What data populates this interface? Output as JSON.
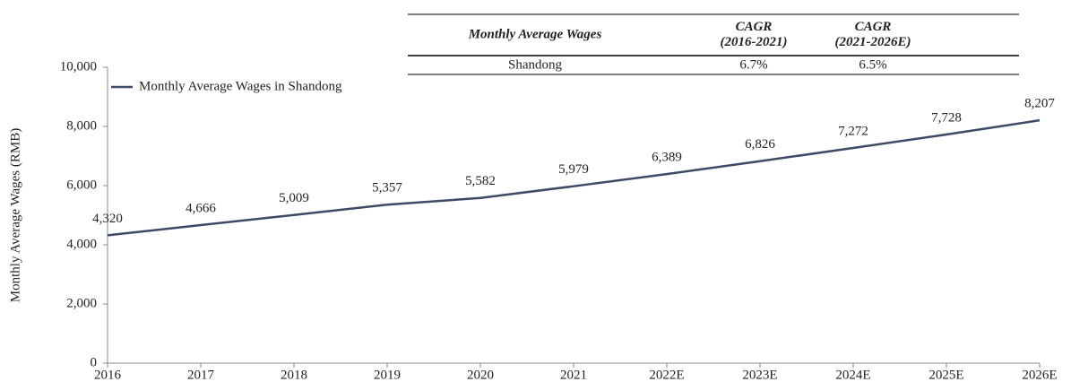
{
  "chart_data": {
    "type": "line",
    "y_label": "Monthly Average Wages (RMB)",
    "categories": [
      "2016",
      "2017",
      "2018",
      "2019",
      "2020",
      "2021",
      "2022E",
      "2023E",
      "2024E",
      "2025E",
      "2026E"
    ],
    "series": [
      {
        "name": "Monthly Average Wages in Shandong",
        "color": "#3b4a66",
        "values": [
          4320,
          4666,
          5009,
          5357,
          5582,
          5979,
          6389,
          6826,
          7272,
          7728,
          8207
        ],
        "value_labels": [
          "4,320",
          "4,666",
          "5,009",
          "5,357",
          "5,582",
          "5,979",
          "6,389",
          "6,826",
          "7,272",
          "7,728",
          "8,207"
        ]
      }
    ],
    "ylim": [
      0,
      10000
    ],
    "yticks": [
      0,
      {
        "value": 2000,
        "label": "2,000"
      },
      {
        "value": 4000,
        "label": "4,000"
      },
      {
        "value": 6000,
        "label": "6,000"
      },
      {
        "value": 8000,
        "label": "8,000"
      },
      {
        "value": 10000,
        "label": "10,000"
      }
    ],
    "legend": "top-left"
  },
  "table": {
    "header": [
      [
        "Monthly Average Wages"
      ],
      [
        "CAGR",
        "(2016-2021)"
      ],
      [
        "CAGR",
        "(2021-2026E)"
      ]
    ],
    "rows": [
      [
        "Shandong",
        "6.7%",
        "6.5%"
      ]
    ]
  }
}
